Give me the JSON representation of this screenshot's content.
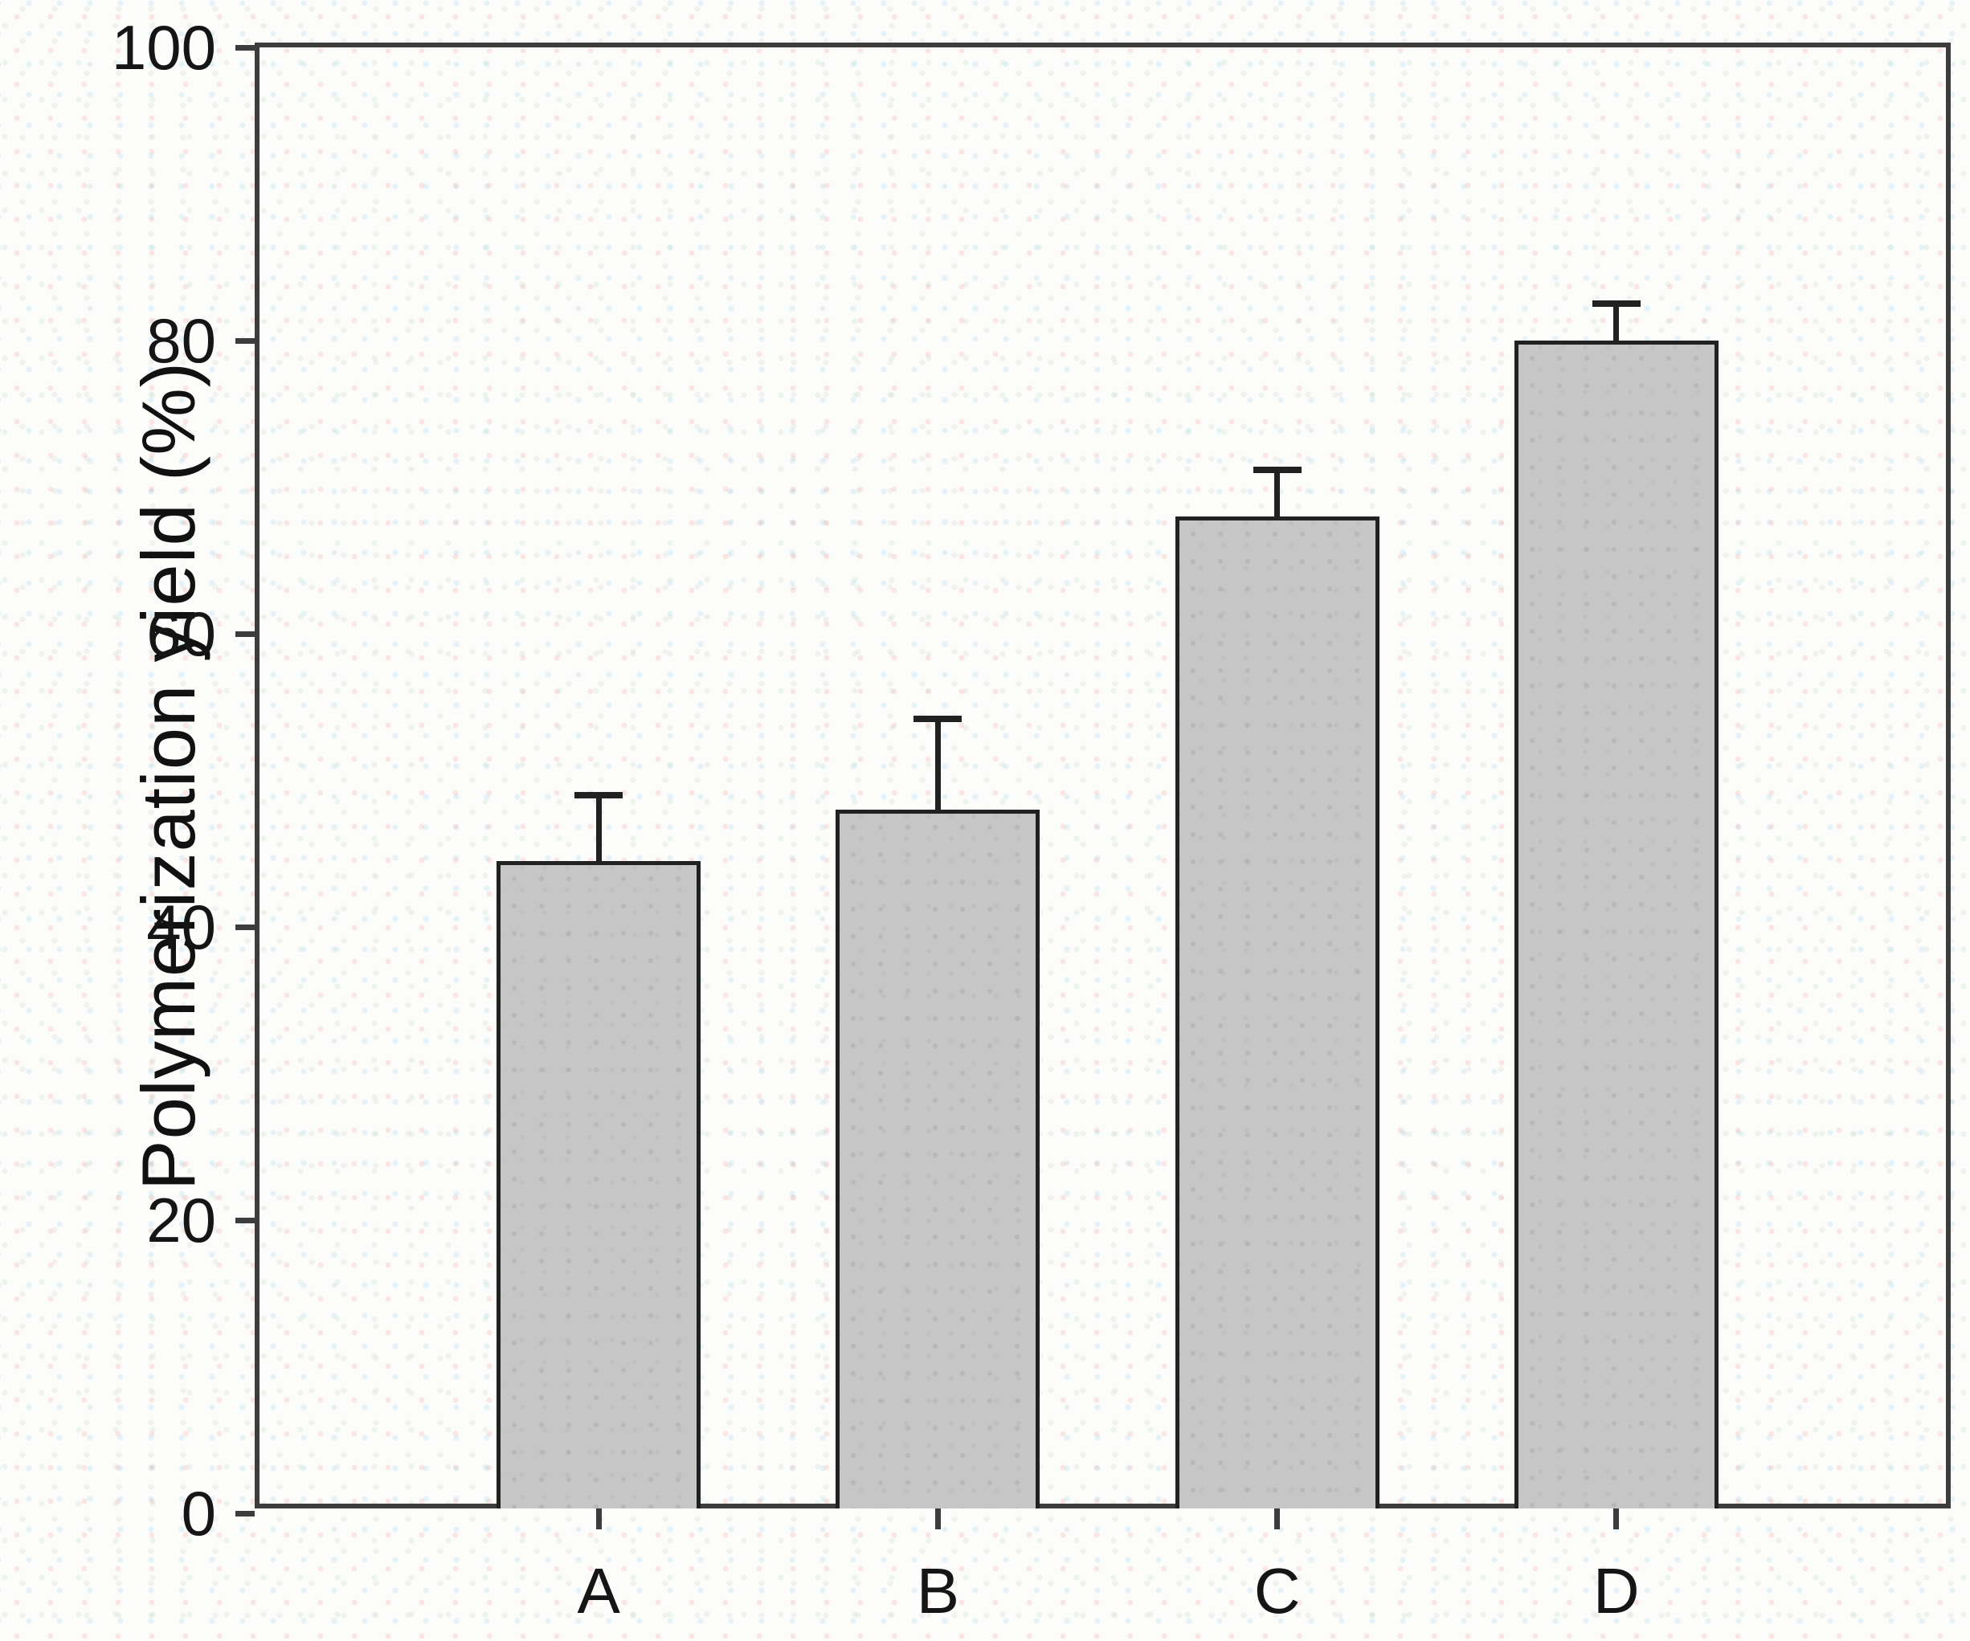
{
  "figure": {
    "y_axis_label": "Polymerization yield (%)"
  },
  "chart_data": {
    "type": "bar",
    "title": "",
    "categories": [
      "A",
      "B",
      "C",
      "D"
    ],
    "values": [
      44.5,
      48,
      68,
      80
    ],
    "errors_plus": [
      4.5,
      6.2,
      3.2,
      2.5
    ],
    "xlabel": "",
    "ylabel": "Polymerization yield (%)",
    "ylim": [
      0,
      100
    ],
    "y_ticks": [
      0,
      20,
      40,
      60,
      80,
      100
    ],
    "grid": false,
    "legend_position": "none",
    "axis_frame": true,
    "colors": {
      "bar_fill": "#c6c6c6",
      "bar_border": "#212121",
      "axis": "#3c3c3c",
      "text": "#151515",
      "background": "#fcfcfb"
    }
  }
}
